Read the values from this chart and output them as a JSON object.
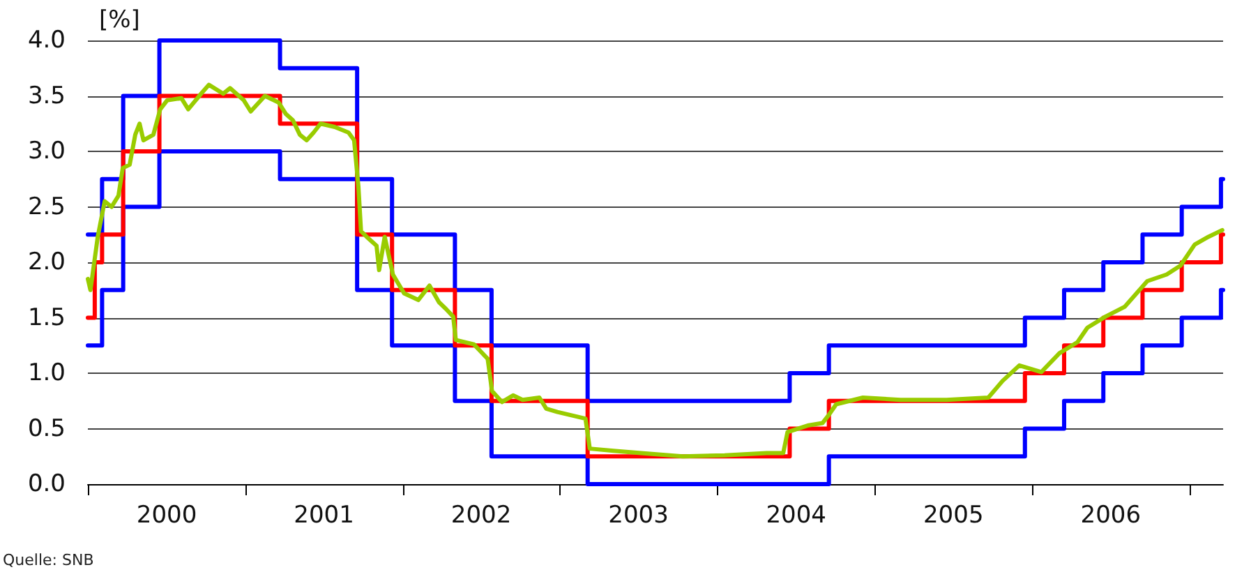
{
  "chart_data": {
    "type": "line",
    "ylabel": "[%]",
    "annotations": [
      "Quelle: SNB"
    ],
    "xlim": [
      "2000-01-01",
      "2007-03-20"
    ],
    "xticks": [
      {
        "value": "2000-01-01",
        "label": null
      },
      {
        "value": "2000-07-02",
        "label": "2000"
      },
      {
        "value": "2001-01-01",
        "label": null
      },
      {
        "value": "2001-07-02",
        "label": "2001"
      },
      {
        "value": "2002-01-01",
        "label": null
      },
      {
        "value": "2002-07-02",
        "label": "2002"
      },
      {
        "value": "2003-01-01",
        "label": null
      },
      {
        "value": "2003-07-02",
        "label": "2003"
      },
      {
        "value": "2004-01-01",
        "label": null
      },
      {
        "value": "2004-07-02",
        "label": "2004"
      },
      {
        "value": "2005-01-01",
        "label": null
      },
      {
        "value": "2005-07-02",
        "label": "2005"
      },
      {
        "value": "2006-01-01",
        "label": null
      },
      {
        "value": "2006-07-02",
        "label": "2006"
      },
      {
        "value": "2007-01-01",
        "label": null
      }
    ],
    "ylim": [
      0,
      4
    ],
    "yticks": [
      {
        "value": 0,
        "label": "0.0"
      },
      {
        "value": 0.5,
        "label": "0.5"
      },
      {
        "value": 1,
        "label": "1.0"
      },
      {
        "value": 1.5,
        "label": "1.5"
      },
      {
        "value": 2,
        "label": "2.0"
      },
      {
        "value": 2.5,
        "label": "2.5"
      },
      {
        "value": 3,
        "label": "3.0"
      },
      {
        "value": 3.5,
        "label": "3.5"
      },
      {
        "value": 4,
        "label": "4.0"
      }
    ],
    "grid": "y",
    "marker": "none",
    "line_style": "solid",
    "series": [
      {
        "type": "step",
        "color": "#0000ff",
        "x": [
          "2000-01-01",
          "2000-02-03",
          "2000-03-23",
          "2000-06-15",
          "2001-03-22",
          "2001-09-17",
          "2001-12-07",
          "2002-05-02",
          "2002-07-26",
          "2003-03-06",
          "2004-06-17",
          "2004-09-16",
          "2005-12-15",
          "2006-03-16",
          "2006-06-15",
          "2006-09-14",
          "2006-12-14",
          "2007-03-15",
          "2007-03-20"
        ],
        "values": [
          2.25,
          2.75,
          3.5,
          4.0,
          3.75,
          2.75,
          2.25,
          1.75,
          1.25,
          0.75,
          1.0,
          1.25,
          1.5,
          1.75,
          2.0,
          2.25,
          2.5,
          2.75,
          2.75
        ]
      },
      {
        "type": "step",
        "color": "#0000ff",
        "x": [
          "2000-01-01",
          "2000-02-03",
          "2000-03-23",
          "2000-06-15",
          "2001-03-22",
          "2001-09-17",
          "2001-12-07",
          "2002-05-02",
          "2002-07-26",
          "2003-03-06",
          "2004-06-17",
          "2004-09-16",
          "2005-12-15",
          "2006-03-16",
          "2006-06-15",
          "2006-09-14",
          "2006-12-14",
          "2007-03-15",
          "2007-03-20"
        ],
        "values": [
          1.25,
          1.75,
          2.5,
          3.0,
          2.75,
          1.75,
          1.25,
          0.75,
          0.25,
          0.0,
          0.0,
          0.25,
          0.5,
          0.75,
          1.0,
          1.25,
          1.5,
          1.75,
          1.75
        ]
      },
      {
        "type": "step",
        "color": "#ff0000",
        "x": [
          "2000-01-01",
          "2000-01-17",
          "2000-02-03",
          "2000-03-23",
          "2000-06-15",
          "2001-03-22",
          "2001-09-17",
          "2001-12-07",
          "2002-05-02",
          "2002-07-26",
          "2003-03-06",
          "2004-06-17",
          "2004-09-16",
          "2005-12-15",
          "2006-03-16",
          "2006-06-15",
          "2006-09-14",
          "2006-12-14",
          "2007-03-15",
          "2007-03-20"
        ],
        "values": [
          1.5,
          2.0,
          2.25,
          3.0,
          3.5,
          3.25,
          2.25,
          1.75,
          1.25,
          0.75,
          0.25,
          0.5,
          0.75,
          1.0,
          1.25,
          1.5,
          1.75,
          2.0,
          2.25,
          2.25
        ]
      },
      {
        "type": "line",
        "color": "#99cc00",
        "x": [
          "2000-01-01",
          "2000-01-07",
          "2000-01-24",
          "2000-02-09",
          "2000-02-25",
          "2000-03-12",
          "2000-03-22",
          "2000-04-07",
          "2000-04-20",
          "2000-04-30",
          "2000-05-09",
          "2000-06-01",
          "2000-06-17",
          "2000-07-03",
          "2000-08-05",
          "2000-08-21",
          "2000-09-22",
          "2000-10-08",
          "2000-11-10",
          "2000-11-26",
          "2000-12-28",
          "2001-01-13",
          "2001-02-15",
          "2001-03-19",
          "2001-04-04",
          "2001-04-21",
          "2001-05-07",
          "2001-05-23",
          "2001-06-08",
          "2001-06-24",
          "2001-07-27",
          "2001-08-28",
          "2001-09-10",
          "2001-09-20",
          "2001-09-26",
          "2001-10-09",
          "2001-11-01",
          "2001-11-07",
          "2001-11-20",
          "2001-12-09",
          "2002-01-04",
          "2002-02-06",
          "2002-03-04",
          "2002-03-26",
          "2002-04-11",
          "2002-04-28",
          "2002-05-04",
          "2002-06-15",
          "2002-07-17",
          "2002-07-27",
          "2002-08-19",
          "2002-09-14",
          "2002-10-06",
          "2002-11-14",
          "2002-11-30",
          "2002-12-26",
          "2003-03-01",
          "2003-03-11",
          "2003-05-05",
          "2003-07-08",
          "2003-10-13",
          "2004-01-18",
          "2004-04-25",
          "2004-06-02",
          "2004-06-12",
          "2004-07-31",
          "2004-09-01",
          "2004-09-17",
          "2004-10-03",
          "2004-12-04",
          "2005-03-01",
          "2005-06-16",
          "2005-09-21",
          "2005-10-24",
          "2005-12-02",
          "2006-01-22",
          "2006-03-05",
          "2006-04-16",
          "2006-05-09",
          "2006-06-20",
          "2006-08-04",
          "2006-09-25",
          "2006-11-09",
          "2006-12-11",
          "2007-01-13",
          "2007-02-14",
          "2007-03-18"
        ],
        "values": [
          1.85,
          1.75,
          2.23,
          2.55,
          2.5,
          2.6,
          2.85,
          2.88,
          3.15,
          3.25,
          3.1,
          3.15,
          3.38,
          3.46,
          3.48,
          3.38,
          3.53,
          3.6,
          3.52,
          3.57,
          3.46,
          3.36,
          3.5,
          3.44,
          3.34,
          3.28,
          3.15,
          3.1,
          3.17,
          3.25,
          3.22,
          3.17,
          3.1,
          2.68,
          2.28,
          2.23,
          2.15,
          1.93,
          2.23,
          1.89,
          1.72,
          1.66,
          1.79,
          1.64,
          1.58,
          1.51,
          1.3,
          1.26,
          1.13,
          0.84,
          0.74,
          0.8,
          0.76,
          0.78,
          0.68,
          0.65,
          0.59,
          0.32,
          0.3,
          0.28,
          0.25,
          0.26,
          0.28,
          0.28,
          0.47,
          0.53,
          0.55,
          0.63,
          0.72,
          0.78,
          0.76,
          0.76,
          0.78,
          0.93,
          1.07,
          1.01,
          1.18,
          1.28,
          1.41,
          1.51,
          1.6,
          1.83,
          1.89,
          1.97,
          2.16,
          2.23,
          2.29
        ]
      }
    ]
  }
}
